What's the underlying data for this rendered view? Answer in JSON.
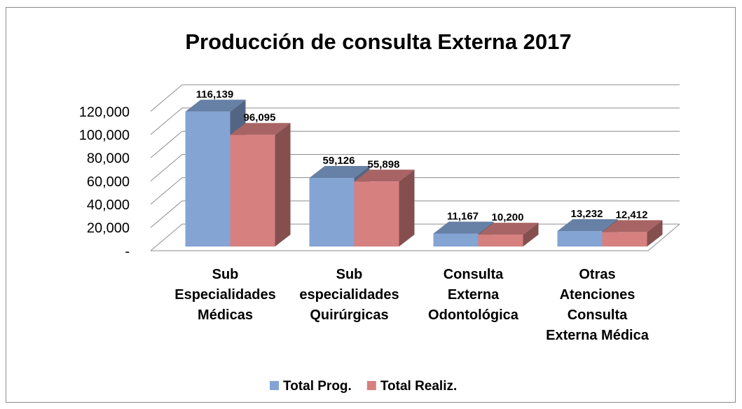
{
  "chart_data": {
    "type": "bar3d",
    "title": "Producción de consulta Externa  2017",
    "categories": [
      "Sub Especialidades Médicas",
      "Sub especialidades Quirúrgicas",
      "Consulta Externa Odontológica",
      "Otras Atenciones Consulta Externa Médica"
    ],
    "series": [
      {
        "name": "Total Prog.",
        "color": "#84a4d4",
        "values": [
          116139,
          59126,
          11167,
          13232
        ],
        "value_labels": [
          "116,139",
          "59,126",
          "11,167",
          "13,232"
        ]
      },
      {
        "name": "Total Realiz.",
        "color": "#d78080",
        "values": [
          96095,
          55898,
          10200,
          12412
        ],
        "value_labels": [
          "96,095",
          "55,898",
          "10,200",
          "12,412"
        ]
      }
    ],
    "ylim": [
      0,
      120000
    ],
    "yticks": [
      {
        "value": 0,
        "label": "-"
      },
      {
        "value": 20000,
        "label": "20,000"
      },
      {
        "value": 40000,
        "label": "40,000"
      },
      {
        "value": 60000,
        "label": "60,000"
      },
      {
        "value": 80000,
        "label": "80,000"
      },
      {
        "value": 100000,
        "label": "100,000"
      },
      {
        "value": 120000,
        "label": "120,000"
      }
    ],
    "grid": true,
    "legend": "bottom"
  }
}
